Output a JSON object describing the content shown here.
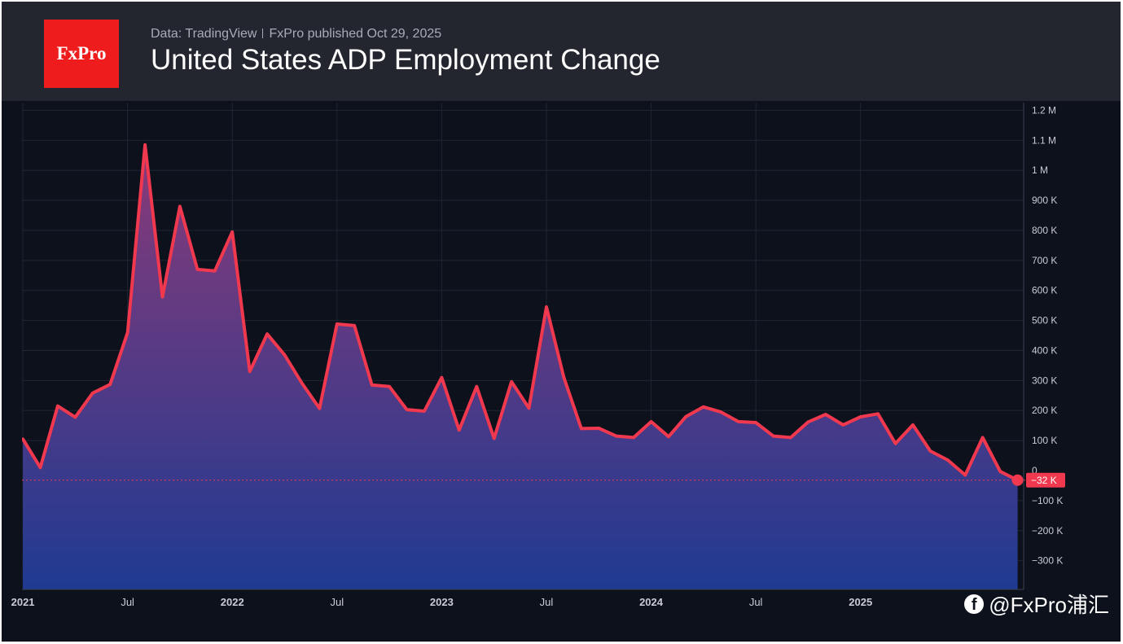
{
  "header": {
    "logo_text": "FxPro",
    "source": "Data: TradingView",
    "published": "FxPro published Oct 29,  2025",
    "title": "United States ADP Employment Change"
  },
  "watermark": {
    "icon": "facebook-icon",
    "text": "@FxPro浦汇"
  },
  "colors": {
    "background": "#0c111c",
    "header": "#23262f",
    "line": "#f0384f",
    "area_top": "#8a3a78",
    "area_bottom": "#1f3a92",
    "grid": "#1f2632",
    "axis_text": "#c9ccd3",
    "logo_bg": "#ee1c1c"
  },
  "chart_data": {
    "type": "area",
    "title": "United States ADP Employment Change",
    "unit": "thousands",
    "ylim": [
      -400,
      1200
    ],
    "y_ticks": [
      {
        "v": 1200,
        "label": "1.2 M"
      },
      {
        "v": 1100,
        "label": "1.1 M"
      },
      {
        "v": 1000,
        "label": "1 M"
      },
      {
        "v": 900,
        "label": "900 K"
      },
      {
        "v": 800,
        "label": "800 K"
      },
      {
        "v": 700,
        "label": "700 K"
      },
      {
        "v": 600,
        "label": "600 K"
      },
      {
        "v": 500,
        "label": "500 K"
      },
      {
        "v": 400,
        "label": "400 K"
      },
      {
        "v": 300,
        "label": "300 K"
      },
      {
        "v": 200,
        "label": "200 K"
      },
      {
        "v": 100,
        "label": "100 K"
      },
      {
        "v": 0,
        "label": "0"
      },
      {
        "v": -100,
        "label": "−100 K"
      },
      {
        "v": -200,
        "label": "−200 K"
      },
      {
        "v": -300,
        "label": "−300 K"
      }
    ],
    "x_ticks": [
      {
        "i": 0,
        "label": "2021",
        "bold": true
      },
      {
        "i": 6,
        "label": "Jul",
        "bold": false
      },
      {
        "i": 12,
        "label": "2022",
        "bold": true
      },
      {
        "i": 18,
        "label": "Jul",
        "bold": false
      },
      {
        "i": 24,
        "label": "2023",
        "bold": true
      },
      {
        "i": 30,
        "label": "Jul",
        "bold": false
      },
      {
        "i": 36,
        "label": "2024",
        "bold": true
      },
      {
        "i": 42,
        "label": "Jul",
        "bold": false
      },
      {
        "i": 48,
        "label": "2025",
        "bold": true
      }
    ],
    "x_start_index": -0.05,
    "last_value": -32,
    "last_label": "−32 K",
    "series": [
      {
        "name": "ADP Employment Change",
        "values": [
          105,
          10,
          215,
          178,
          258,
          287,
          460,
          1085,
          578,
          880,
          670,
          665,
          795,
          330,
          455,
          385,
          290,
          207,
          488,
          483,
          285,
          280,
          203,
          198,
          310,
          135,
          280,
          107,
          296,
          208,
          545,
          310,
          140,
          141,
          115,
          110,
          163,
          113,
          180,
          212,
          195,
          163,
          160,
          115,
          110,
          162,
          187,
          152,
          179,
          189,
          90,
          152,
          65,
          35,
          -15,
          110,
          -3,
          -32
        ]
      }
    ]
  }
}
